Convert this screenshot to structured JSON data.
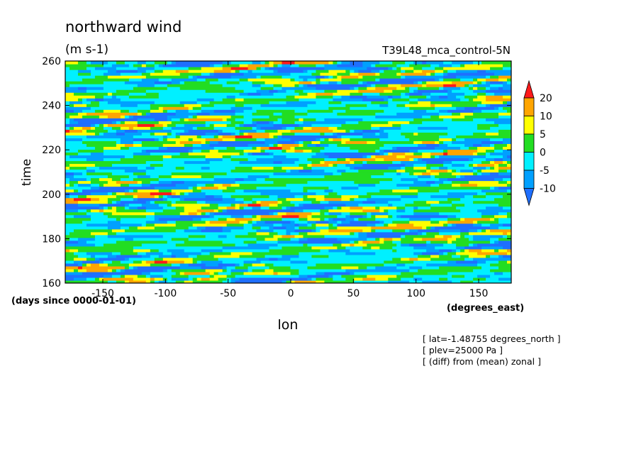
{
  "chart_data": {
    "type": "heatmap",
    "title": "northward wind",
    "units": "(m s-1)",
    "subtitle": "T39L48_mca_control-5N",
    "xlabel": "lon",
    "x_units": "(degrees_east)",
    "ylabel": "time",
    "y_units": "(days since 0000-01-01)",
    "xlim": [
      -180,
      176
    ],
    "ylim": [
      160,
      260
    ],
    "x_ticks": [
      -150,
      -100,
      -50,
      0,
      50,
      100,
      150
    ],
    "x_tick_labels": [
      "-150",
      "-100",
      "-50",
      "0",
      "50",
      "100",
      "150"
    ],
    "y_ticks": [
      160,
      180,
      200,
      220,
      240,
      260
    ],
    "y_tick_labels": [
      "160",
      "180",
      "200",
      "220",
      "240",
      "260"
    ],
    "contour_levels": [
      -10,
      -5,
      0,
      5,
      10,
      20
    ],
    "colorbar_labels": [
      "20",
      "10",
      "5",
      "0",
      "-5",
      "-10"
    ],
    "colors": [
      "#1f6fff",
      "#00a0ff",
      "#00f0ff",
      "#22dd22",
      "#ffff00",
      "#ffa500",
      "#ff1a1a"
    ],
    "bands": [
      {
        "range": "< -10",
        "color": "#1f6fff"
      },
      {
        "range": "-10 to -5",
        "color": "#00a0ff"
      },
      {
        "range": "-5 to 0",
        "color": "#00f0ff"
      },
      {
        "range": "0 to 5",
        "color": "#22dd22"
      },
      {
        "range": "5 to 10",
        "color": "#ffff00"
      },
      {
        "range": "10 to 20",
        "color": "#ffa500"
      },
      {
        "range": "> 20",
        "color": "#ff1a1a"
      }
    ],
    "field_description": "filled contours of northward wind anomaly vs longitude and time, streaky eastward-tilted bands",
    "annotations": [
      "[ lat=-1.48755 degrees_north ]",
      "[ plev=25000 Pa ]",
      "[ (diff) from (mean) zonal ]"
    ]
  }
}
